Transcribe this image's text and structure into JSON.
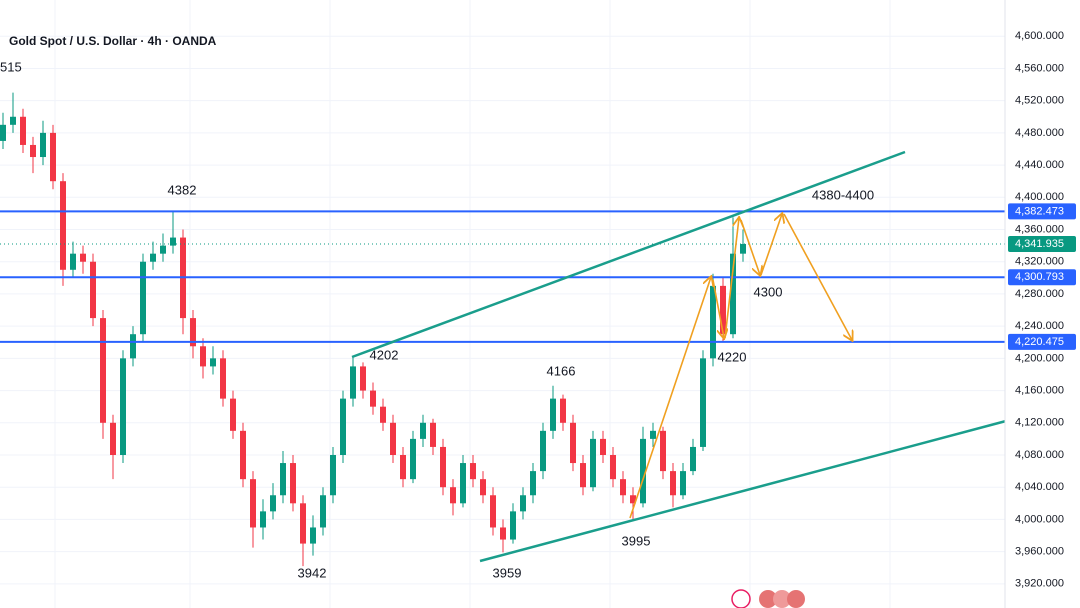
{
  "chart_data": {
    "type": "candlestick",
    "title": "Gold Spot / U.S. Dollar · 4h · OANDA",
    "up_color": "#089981",
    "down_color": "#f23645",
    "open": [
      4470,
      4490,
      4500,
      4465,
      4450,
      4480,
      4420,
      4310,
      4330,
      4320,
      4250,
      4120,
      4080,
      4200,
      4230,
      4320,
      4330,
      4340,
      4350,
      4250,
      4215,
      4190,
      4200,
      4150,
      4110,
      4050,
      3990,
      4010,
      4030,
      4070,
      4020,
      3970,
      3990,
      4030,
      4080,
      4150,
      4190,
      4160,
      4140,
      4120,
      4080,
      4050,
      4100,
      4120,
      4090,
      4040,
      4020,
      4070,
      4050,
      4030,
      3990,
      3975,
      4010,
      4030,
      4060,
      4110,
      4150,
      4120,
      4070,
      4040,
      4100,
      4080,
      4050,
      4030,
      4020,
      4100,
      4110,
      4060,
      4030,
      4060,
      4090,
      4200,
      4290,
      4230,
      4330
    ],
    "high": [
      4505,
      4530,
      4510,
      4475,
      4495,
      4490,
      4430,
      4345,
      4340,
      4330,
      4260,
      4130,
      4210,
      4240,
      4330,
      4345,
      4355,
      4382,
      4360,
      4260,
      4225,
      4215,
      4210,
      4160,
      4120,
      4060,
      4025,
      4045,
      4085,
      4080,
      4030,
      4005,
      4040,
      4090,
      4160,
      4202,
      4195,
      4170,
      4150,
      4130,
      4090,
      4110,
      4130,
      4125,
      4100,
      4050,
      4080,
      4080,
      4060,
      4040,
      4000,
      4020,
      4040,
      4070,
      4120,
      4166,
      4155,
      4130,
      4080,
      4110,
      4110,
      4090,
      4060,
      4040,
      4115,
      4120,
      4115,
      4070,
      4070,
      4100,
      4210,
      4305,
      4300,
      4375,
      4360
    ],
    "low": [
      4460,
      4480,
      4455,
      4430,
      4440,
      4410,
      4290,
      4300,
      4305,
      4240,
      4100,
      4050,
      4070,
      4190,
      4220,
      4310,
      4320,
      4330,
      4230,
      4200,
      4175,
      4180,
      4140,
      4100,
      4040,
      3965,
      3975,
      4000,
      4020,
      4010,
      3942,
      3955,
      3980,
      4020,
      4070,
      4140,
      4150,
      4130,
      4110,
      4070,
      4040,
      4045,
      4090,
      4080,
      4030,
      4005,
      4015,
      4040,
      4020,
      3980,
      3959,
      3970,
      4000,
      4020,
      4050,
      4100,
      4110,
      4060,
      4030,
      4035,
      4070,
      4040,
      4020,
      4000,
      4015,
      4090,
      4050,
      4015,
      4025,
      4055,
      4085,
      4190,
      4220,
      4225,
      4320
    ],
    "close": [
      4490,
      4500,
      4465,
      4450,
      4480,
      4420,
      4310,
      4330,
      4320,
      4250,
      4120,
      4080,
      4200,
      4230,
      4320,
      4330,
      4340,
      4350,
      4250,
      4215,
      4190,
      4200,
      4150,
      4110,
      4050,
      3990,
      4010,
      4030,
      4070,
      4020,
      3970,
      3990,
      4030,
      4080,
      4150,
      4190,
      4160,
      4140,
      4120,
      4080,
      4050,
      4100,
      4120,
      4090,
      4040,
      4020,
      4070,
      4050,
      4030,
      3990,
      3975,
      4010,
      4030,
      4060,
      4110,
      4150,
      4120,
      4070,
      4040,
      4100,
      4080,
      4050,
      4030,
      4020,
      4100,
      4110,
      4060,
      4030,
      4060,
      4090,
      4200,
      4290,
      4230,
      4330,
      4342
    ],
    "ylim": [
      3890,
      4645
    ],
    "yticks": [
      {
        "value": 3920,
        "label": "3,920.000"
      },
      {
        "value": 3960,
        "label": "3,960.000"
      },
      {
        "value": 4000,
        "label": "4,000.000"
      },
      {
        "value": 4040,
        "label": "4,040.000"
      },
      {
        "value": 4080,
        "label": "4,080.000"
      },
      {
        "value": 4120,
        "label": "4,120.000"
      },
      {
        "value": 4160,
        "label": "4,160.000"
      },
      {
        "value": 4200,
        "label": "4,200.000"
      },
      {
        "value": 4240,
        "label": "4,240.000"
      },
      {
        "value": 4280,
        "label": "4,280.000"
      },
      {
        "value": 4320,
        "label": "4,320.000"
      },
      {
        "value": 4360,
        "label": "4,360.000"
      },
      {
        "value": 4400,
        "label": "4,400.000"
      },
      {
        "value": 4440,
        "label": "4,440.000"
      },
      {
        "value": 4480,
        "label": "4,480.000"
      },
      {
        "value": 4520,
        "label": "4,520.000"
      },
      {
        "value": 4560,
        "label": "4,560.000"
      },
      {
        "value": 4600,
        "label": "4,600.000"
      }
    ],
    "price_lines": [
      {
        "value": 4382.473,
        "label": "4,382.473"
      },
      {
        "value": 4300.793,
        "label": "4,300.793"
      },
      {
        "value": 4220.475,
        "label": "4,220.475"
      }
    ],
    "current_price": {
      "value": 4341.935,
      "label": "4,341.935"
    },
    "grid": true,
    "annotations": [
      "515",
      "4382",
      "4202",
      "3942",
      "3959",
      "4166",
      "3995",
      "4220",
      "4300",
      "4380-4400"
    ]
  }
}
